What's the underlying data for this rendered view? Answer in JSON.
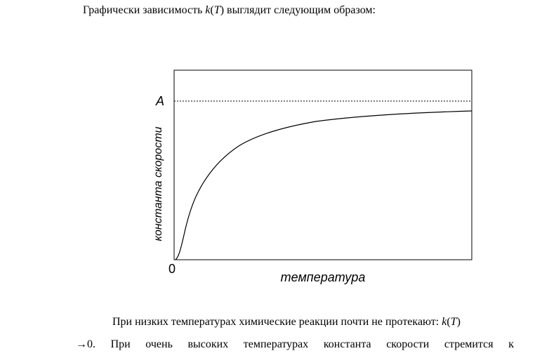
{
  "intro": [
    "Графически зависимость ",
    "k",
    "(",
    "T",
    ") выглядит следующим образом:"
  ],
  "figure": {
    "y_value_label": "A",
    "origin_label": "0",
    "x_axis_label": "температура",
    "y_axis_label": "константа скорости"
  },
  "paragraph": {
    "line1": [
      "При низких температурах химические реакции почти не протекают: ",
      "k",
      "(",
      "T",
      ")"
    ],
    "line2": "→0. При очень высоких температурах константа скорости стремится к"
  }
}
